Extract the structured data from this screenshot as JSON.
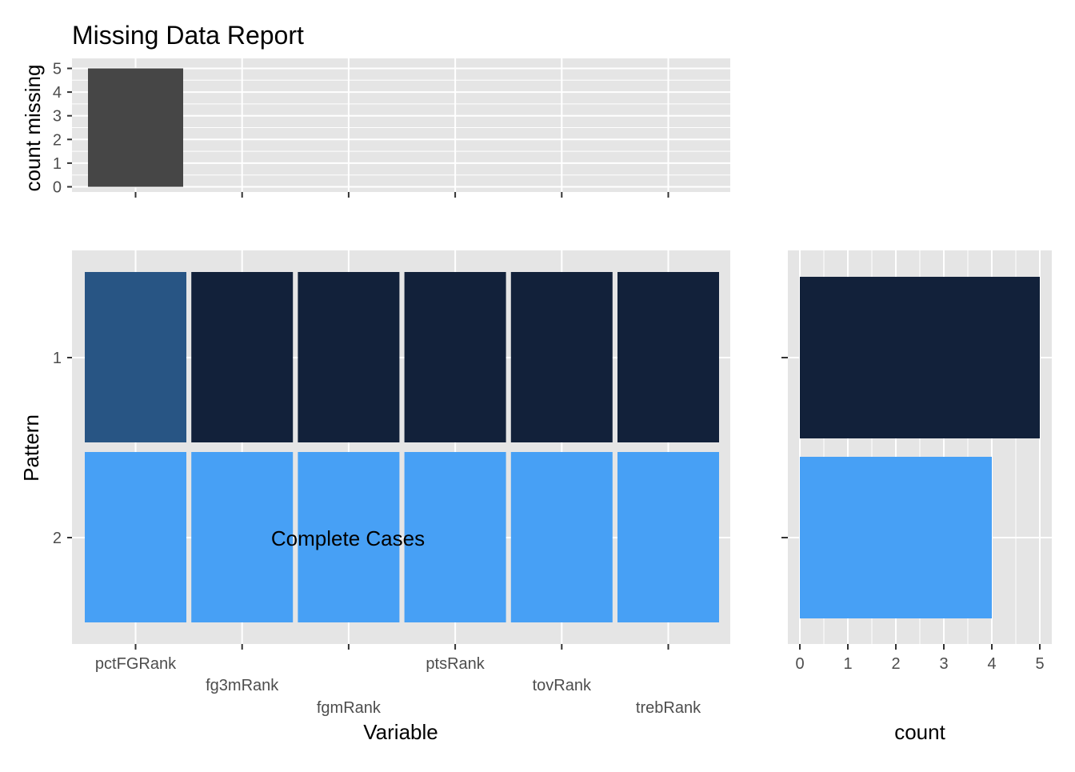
{
  "title": "Missing Data Report",
  "colors": {
    "panel_bg": "#e5e5e5",
    "grid": "#ffffff",
    "missing_bar": "#464646",
    "pattern_1": "#12213a",
    "pattern_1_missing": "#285584",
    "pattern_2": "#47a0f5",
    "tick": "#333333",
    "tick_text": "#4d4d4d"
  },
  "chart_data": [
    {
      "type": "bar",
      "name": "top",
      "ylabel": "count missing",
      "categories": [
        "pctFGRank",
        "fg3mRank",
        "fgmRank",
        "ptsRank",
        "tovRank",
        "trebRank"
      ],
      "values": [
        5,
        0,
        0,
        0,
        0,
        0
      ],
      "ylim": [
        0,
        5
      ],
      "yticks": [
        0,
        1,
        2,
        3,
        4,
        5
      ],
      "grid": true
    },
    {
      "type": "heatmap",
      "name": "pattern",
      "xlabel": "Variable",
      "ylabel": "Pattern",
      "x": [
        "pctFGRank",
        "fg3mRank",
        "fgmRank",
        "ptsRank",
        "tovRank",
        "trebRank"
      ],
      "y": [
        "1",
        "2"
      ],
      "missing": [
        [
          true,
          false,
          false,
          false,
          false,
          false
        ],
        [
          false,
          false,
          false,
          false,
          false,
          false
        ]
      ],
      "annotation": "Complete Cases",
      "annotation_pattern": "2",
      "grid": true
    },
    {
      "type": "bar",
      "name": "counts",
      "orientation": "horizontal",
      "xlabel": "count",
      "categories": [
        "1",
        "2"
      ],
      "values": [
        5,
        4
      ],
      "xlim": [
        0,
        5
      ],
      "xticks": [
        0,
        1,
        2,
        3,
        4,
        5
      ],
      "grid": true
    }
  ]
}
